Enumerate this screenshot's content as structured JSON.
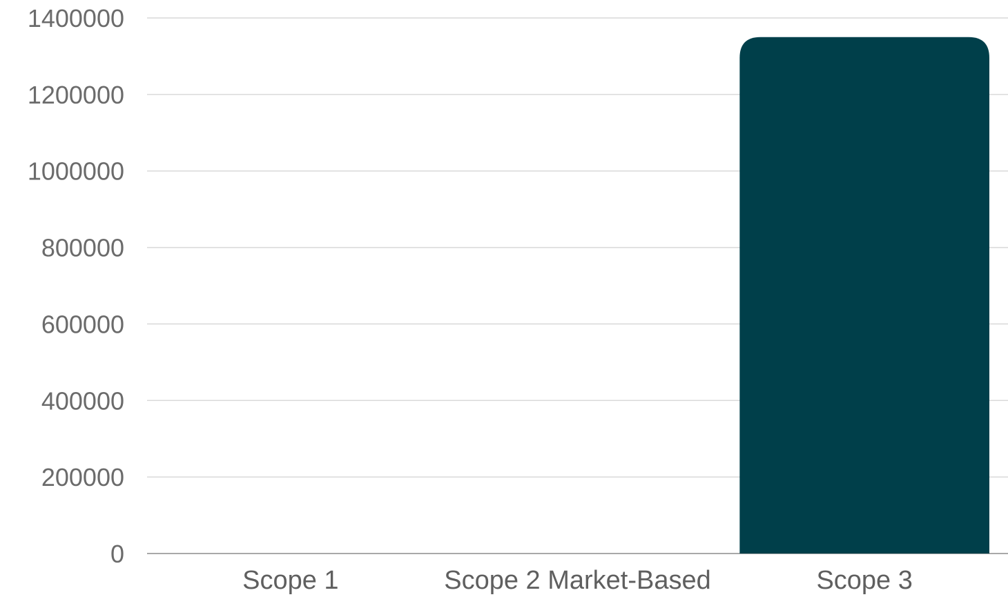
{
  "chart_data": {
    "type": "bar",
    "categories": [
      "Scope 1",
      "Scope 2 Market-Based",
      "Scope 3"
    ],
    "values": [
      0,
      0,
      1350000
    ],
    "title": "",
    "xlabel": "",
    "ylabel": "",
    "ylim": [
      0,
      1400000
    ],
    "yticks": [
      0,
      200000,
      400000,
      600000,
      800000,
      1000000,
      1200000,
      1400000
    ],
    "ytick_labels": [
      "0",
      "200000",
      "400000",
      "600000",
      "800000",
      "1000000",
      "1200000",
      "1400000"
    ],
    "grid": true,
    "legend": "none",
    "bar_color": "#003f4a",
    "grid_color": "#d9d9d9"
  }
}
